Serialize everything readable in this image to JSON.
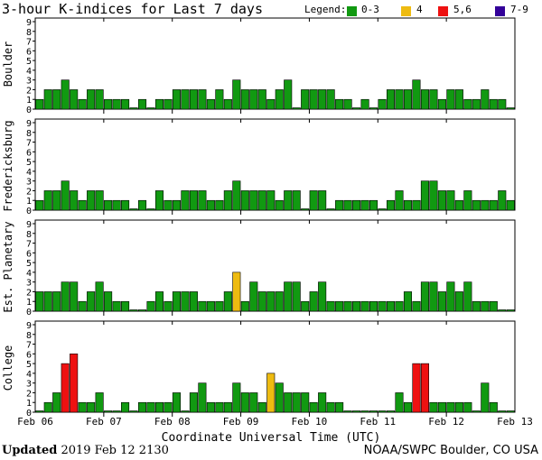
{
  "header": {
    "title": "3-hour K-indices for Last 7 days",
    "legend_label": "Legend:",
    "legend": [
      {
        "label": "0-3",
        "color": "#119911"
      },
      {
        "label": "4",
        "color": "#eebb11"
      },
      {
        "label": "5,6",
        "color": "#ee1111"
      },
      {
        "label": "7-9",
        "color": "#330099"
      }
    ]
  },
  "footer": {
    "updated_label": "Updated",
    "updated_value": "2019 Feb 12 2130",
    "source": "NOAA/SWPC Boulder, CO USA"
  },
  "chart_data": {
    "type": "bar",
    "xlabel": "Coordinate Universal Time (UTC)",
    "x_tick_labels": [
      "Feb 06",
      "Feb 07",
      "Feb 08",
      "Feb 09",
      "Feb 10",
      "Feb 11",
      "Feb 12",
      "Feb 13"
    ],
    "y_ticks": [
      0,
      1,
      2,
      3,
      4,
      5,
      6,
      7,
      8,
      9
    ],
    "ylim": [
      0,
      9
    ],
    "intervals_per_day": 8,
    "color_scale": {
      "0-3": "#119911",
      "4": "#eebb11",
      "5-6": "#ee1111",
      "7-9": "#330099"
    },
    "panels": [
      {
        "name": "Boulder",
        "values": [
          1,
          2,
          2,
          3,
          2,
          1,
          2,
          2,
          1,
          1,
          1,
          0,
          1,
          0,
          1,
          1,
          2,
          2,
          2,
          2,
          1,
          2,
          1,
          3,
          2,
          2,
          2,
          1,
          2,
          3,
          0,
          2,
          2,
          2,
          2,
          1,
          1,
          0,
          1,
          0,
          1,
          2,
          2,
          2,
          3,
          2,
          2,
          1,
          2,
          2,
          1,
          1,
          2,
          1,
          1,
          0
        ]
      },
      {
        "name": "Fredericksburg",
        "values": [
          1,
          2,
          2,
          3,
          2,
          1,
          2,
          2,
          1,
          1,
          1,
          0,
          1,
          0,
          2,
          1,
          1,
          2,
          2,
          2,
          1,
          1,
          2,
          3,
          2,
          2,
          2,
          2,
          1,
          2,
          2,
          0,
          2,
          2,
          0,
          1,
          1,
          1,
          1,
          1,
          0,
          1,
          2,
          1,
          1,
          3,
          3,
          2,
          2,
          1,
          2,
          1,
          1,
          1,
          2,
          1
        ]
      },
      {
        "name": "Est. Planetary",
        "values": [
          2,
          2,
          2,
          3,
          3,
          1,
          2,
          3,
          2,
          1,
          1,
          0,
          0,
          1,
          2,
          1,
          2,
          2,
          2,
          1,
          1,
          1,
          2,
          4,
          1,
          3,
          2,
          2,
          2,
          3,
          3,
          1,
          2,
          3,
          1,
          1,
          1,
          1,
          1,
          1,
          1,
          1,
          1,
          2,
          1,
          3,
          3,
          2,
          3,
          2,
          3,
          1,
          1,
          1,
          0,
          0
        ]
      },
      {
        "name": "College",
        "values": [
          0,
          1,
          2,
          5,
          6,
          1,
          1,
          2,
          0,
          0,
          1,
          0,
          1,
          1,
          1,
          1,
          2,
          0,
          2,
          3,
          1,
          1,
          1,
          3,
          2,
          2,
          1,
          4,
          3,
          2,
          2,
          2,
          1,
          2,
          1,
          1,
          0,
          0,
          0,
          0,
          0,
          0,
          2,
          1,
          5,
          5,
          1,
          1,
          1,
          1,
          1,
          0,
          3,
          1,
          0,
          0
        ]
      }
    ]
  }
}
